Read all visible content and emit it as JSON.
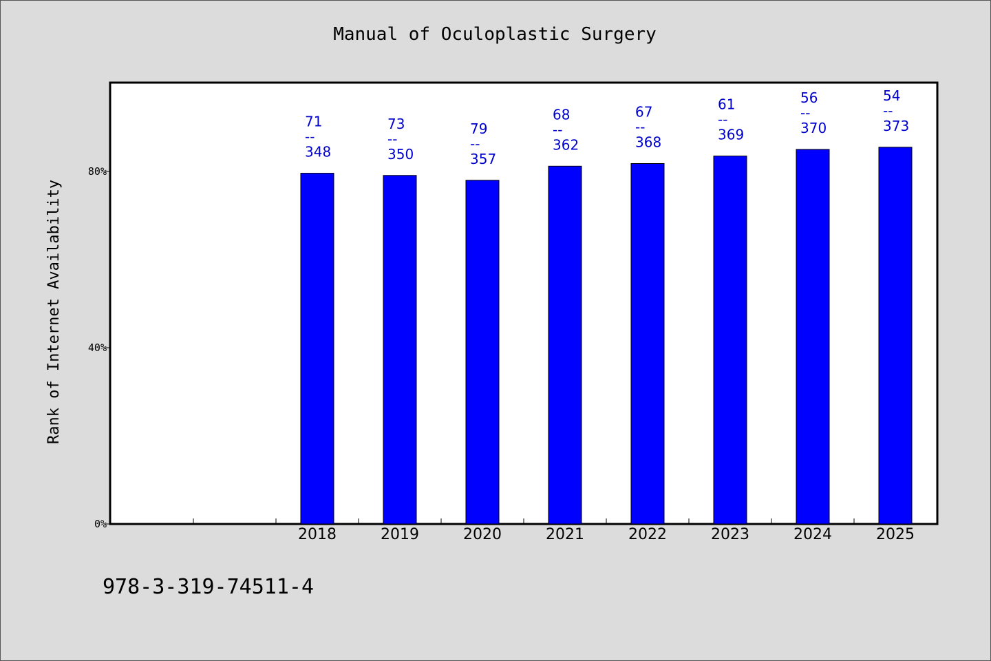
{
  "chart_data": {
    "type": "bar",
    "title": "Manual of Oculoplastic Surgery",
    "ylabel": "Rank of Internet Availability",
    "xlabel": "",
    "categories": [
      "",
      "",
      "2018",
      "2019",
      "2020",
      "2021",
      "2022",
      "2023",
      "2024",
      "2025"
    ],
    "values": [
      null,
      null,
      79.6,
      79.1,
      78.0,
      81.2,
      81.8,
      83.5,
      85.0,
      85.5
    ],
    "bar_labels": [
      null,
      null,
      {
        "top": "71",
        "sep": "--",
        "bottom": "348"
      },
      {
        "top": "73",
        "sep": "--",
        "bottom": "350"
      },
      {
        "top": "79",
        "sep": "--",
        "bottom": "357"
      },
      {
        "top": "68",
        "sep": "--",
        "bottom": "362"
      },
      {
        "top": "67",
        "sep": "--",
        "bottom": "368"
      },
      {
        "top": "61",
        "sep": "--",
        "bottom": "369"
      },
      {
        "top": "56",
        "sep": "--",
        "bottom": "370"
      },
      {
        "top": "54",
        "sep": "--",
        "bottom": "373"
      }
    ],
    "ylim": [
      0,
      100
    ],
    "yticks": [
      0,
      40,
      80
    ],
    "ytick_labels": [
      "0%",
      "40%",
      "80%"
    ],
    "grid": false,
    "bar_color": "#0000ff",
    "label_color": "#0000cc"
  },
  "footer": {
    "isbn": "978-3-319-74511-4"
  }
}
